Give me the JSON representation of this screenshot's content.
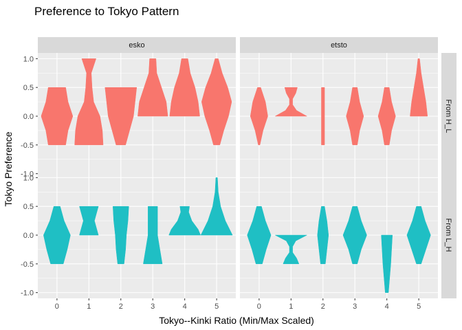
{
  "chart_data": {
    "type": "violin",
    "title": "Preference to Tokyo Pattern",
    "xlabel": "Tokyo--Kinki Ratio (Min/Max Scaled)",
    "ylabel": "Tokyo Preference",
    "x_categories": [
      "0",
      "1",
      "2",
      "3",
      "4",
      "5"
    ],
    "ylim": [
      -1.1,
      1.1
    ],
    "y_ticks": [
      "-1.0",
      "-0.5",
      "0.0",
      "0.5",
      "1.0"
    ],
    "grid": true,
    "legend": "none",
    "facet_columns": [
      "esko",
      "etsto"
    ],
    "facet_rows": [
      "From H_L",
      "From L_H"
    ],
    "colors": {
      "From H_L": "#F8766D",
      "From L_H": "#1FBFC4",
      "panel": "#EBEBEB",
      "grid": "#FFFFFF",
      "strip": "#D9D9D9"
    },
    "panels": [
      {
        "column": "esko",
        "row": "From H_L",
        "violins": [
          {
            "x": "0",
            "profile": [
              [
                -0.5,
                0.55
              ],
              [
                -0.25,
                0.7
              ],
              [
                0.0,
                1.0
              ],
              [
                0.25,
                0.7
              ],
              [
                0.5,
                0.55
              ]
            ]
          },
          {
            "x": "1",
            "profile": [
              [
                -0.5,
                0.9
              ],
              [
                -0.25,
                0.85
              ],
              [
                0.0,
                0.7
              ],
              [
                0.25,
                0.3
              ],
              [
                0.5,
                0.2
              ],
              [
                0.75,
                0.15
              ],
              [
                1.0,
                0.45
              ]
            ]
          },
          {
            "x": "2",
            "profile": [
              [
                -0.5,
                0.3
              ],
              [
                -0.25,
                0.55
              ],
              [
                0.0,
                0.8
              ],
              [
                0.25,
                0.9
              ],
              [
                0.5,
                1.0
              ]
            ]
          },
          {
            "x": "3",
            "profile": [
              [
                0.0,
                0.95
              ],
              [
                0.25,
                0.85
              ],
              [
                0.5,
                0.55
              ],
              [
                0.75,
                0.25
              ],
              [
                1.0,
                0.2
              ]
            ]
          },
          {
            "x": "4",
            "profile": [
              [
                0.0,
                0.95
              ],
              [
                0.25,
                0.85
              ],
              [
                0.5,
                0.65
              ],
              [
                0.75,
                0.35
              ],
              [
                1.0,
                0.2
              ]
            ]
          },
          {
            "x": "5",
            "profile": [
              [
                -0.5,
                0.2
              ],
              [
                -0.25,
                0.45
              ],
              [
                0.0,
                0.75
              ],
              [
                0.25,
                0.95
              ],
              [
                0.5,
                0.7
              ],
              [
                0.75,
                0.35
              ],
              [
                1.0,
                0.1
              ]
            ]
          }
        ]
      },
      {
        "column": "etsto",
        "row": "From H_L",
        "violins": [
          {
            "x": "0",
            "profile": [
              [
                -0.5,
                0.05
              ],
              [
                -0.25,
                0.25
              ],
              [
                0.0,
                0.55
              ],
              [
                0.25,
                0.4
              ],
              [
                0.5,
                0.1
              ]
            ]
          },
          {
            "x": "1",
            "profile": [
              [
                0.0,
                1.0
              ],
              [
                0.1,
                0.35
              ],
              [
                0.2,
                0.1
              ],
              [
                0.3,
                0.1
              ],
              [
                0.4,
                0.3
              ],
              [
                0.5,
                0.4
              ]
            ]
          },
          {
            "x": "2",
            "profile": [
              [
                -0.5,
                0.1
              ],
              [
                -0.25,
                0.1
              ],
              [
                0.0,
                0.1
              ],
              [
                0.25,
                0.1
              ],
              [
                0.5,
                0.1
              ]
            ]
          },
          {
            "x": "3",
            "profile": [
              [
                -0.5,
                0.15
              ],
              [
                -0.25,
                0.3
              ],
              [
                0.0,
                0.55
              ],
              [
                0.25,
                0.3
              ],
              [
                0.5,
                0.15
              ]
            ]
          },
          {
            "x": "4",
            "profile": [
              [
                -0.5,
                0.15
              ],
              [
                -0.25,
                0.3
              ],
              [
                0.0,
                0.55
              ],
              [
                0.25,
                0.3
              ],
              [
                0.5,
                0.15
              ]
            ]
          },
          {
            "x": "5",
            "profile": [
              [
                0.0,
                0.55
              ],
              [
                0.25,
                0.45
              ],
              [
                0.5,
                0.3
              ],
              [
                0.75,
                0.15
              ],
              [
                1.0,
                0.05
              ]
            ]
          }
        ]
      },
      {
        "column": "esko",
        "row": "From L_H",
        "violins": [
          {
            "x": "0",
            "profile": [
              [
                -0.5,
                0.4
              ],
              [
                -0.25,
                0.65
              ],
              [
                0.0,
                0.85
              ],
              [
                0.25,
                0.45
              ],
              [
                0.5,
                0.2
              ]
            ]
          },
          {
            "x": "1",
            "profile": [
              [
                0.0,
                0.6
              ],
              [
                0.25,
                0.35
              ],
              [
                0.5,
                0.6
              ]
            ]
          },
          {
            "x": "2",
            "profile": [
              [
                -0.5,
                0.2
              ],
              [
                -0.25,
                0.3
              ],
              [
                0.0,
                0.35
              ],
              [
                0.25,
                0.45
              ],
              [
                0.5,
                0.5
              ]
            ]
          },
          {
            "x": "3",
            "profile": [
              [
                -0.5,
                0.6
              ],
              [
                -0.25,
                0.45
              ],
              [
                0.0,
                0.3
              ],
              [
                0.25,
                0.3
              ],
              [
                0.5,
                0.3
              ]
            ]
          },
          {
            "x": "4",
            "profile": [
              [
                0.0,
                1.0
              ],
              [
                0.1,
                0.85
              ],
              [
                0.25,
                0.45
              ],
              [
                0.4,
                0.25
              ],
              [
                0.5,
                0.3
              ]
            ]
          },
          {
            "x": "5",
            "profile": [
              [
                0.0,
                1.0
              ],
              [
                0.25,
                0.55
              ],
              [
                0.5,
                0.25
              ],
              [
                0.75,
                0.1
              ],
              [
                1.0,
                0.05
              ]
            ]
          }
        ]
      },
      {
        "column": "etsto",
        "row": "From L_H",
        "violins": [
          {
            "x": "0",
            "profile": [
              [
                -0.5,
                0.2
              ],
              [
                -0.25,
                0.45
              ],
              [
                0.0,
                0.75
              ],
              [
                0.25,
                0.4
              ],
              [
                0.5,
                0.15
              ]
            ]
          },
          {
            "x": "1",
            "profile": [
              [
                -0.5,
                0.5
              ],
              [
                -0.4,
                0.35
              ],
              [
                -0.3,
                0.1
              ],
              [
                -0.2,
                0.1
              ],
              [
                -0.1,
                0.3
              ],
              [
                0.0,
                1.0
              ]
            ]
          },
          {
            "x": "2",
            "profile": [
              [
                -0.5,
                0.15
              ],
              [
                -0.25,
                0.25
              ],
              [
                0.0,
                0.35
              ],
              [
                0.25,
                0.25
              ],
              [
                0.5,
                0.1
              ]
            ]
          },
          {
            "x": "3",
            "profile": [
              [
                -0.5,
                0.15
              ],
              [
                -0.25,
                0.4
              ],
              [
                0.0,
                0.75
              ],
              [
                0.25,
                0.4
              ],
              [
                0.5,
                0.15
              ]
            ]
          },
          {
            "x": "4",
            "profile": [
              [
                -1.0,
                0.1
              ],
              [
                -0.5,
                0.25
              ],
              [
                0.0,
                0.35
              ]
            ]
          },
          {
            "x": "5",
            "profile": [
              [
                -0.5,
                0.15
              ],
              [
                -0.25,
                0.45
              ],
              [
                0.0,
                0.75
              ],
              [
                0.25,
                0.4
              ],
              [
                0.5,
                0.15
              ]
            ]
          }
        ]
      }
    ]
  }
}
